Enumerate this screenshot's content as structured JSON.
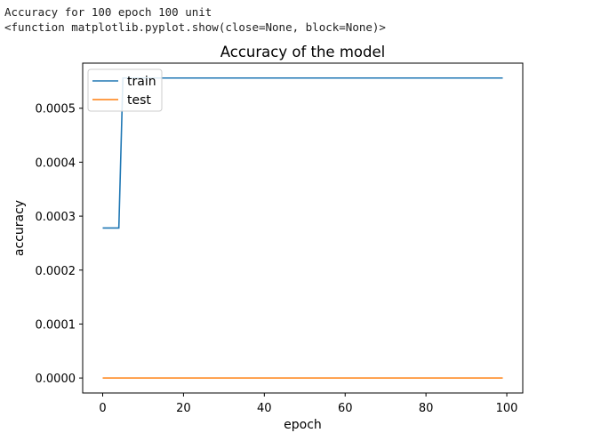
{
  "console": {
    "lines": [
      "Accuracy for 100 epoch 100 unit",
      "<function matplotlib.pyplot.show(close=None, block=None)>"
    ]
  },
  "chart_data": {
    "type": "line",
    "title": "Accuracy of the model",
    "xlabel": "epoch",
    "ylabel": "accuracy",
    "xlim": [
      -4.95,
      103.95
    ],
    "ylim": [
      -2.78e-05,
      0.0005836
    ],
    "xticks": [
      0,
      20,
      40,
      60,
      80,
      100
    ],
    "xtick_labels": [
      "0",
      "20",
      "40",
      "60",
      "80",
      "100"
    ],
    "yticks": [
      0.0,
      0.0001,
      0.0002,
      0.0003,
      0.0004,
      0.0005
    ],
    "ytick_labels": [
      "0.0000",
      "0.0001",
      "0.0002",
      "0.0003",
      "0.0004",
      "0.0005"
    ],
    "legend_position": "upper-left",
    "series": [
      {
        "name": "train",
        "color": "#1f77b4",
        "points": [
          [
            0,
            0.000278
          ],
          [
            4,
            0.000278
          ],
          [
            5,
            0.000556
          ],
          [
            99,
            0.000556
          ]
        ]
      },
      {
        "name": "test",
        "color": "#ff7f0e",
        "points": [
          [
            0,
            0.0
          ],
          [
            99,
            0.0
          ]
        ]
      }
    ]
  }
}
